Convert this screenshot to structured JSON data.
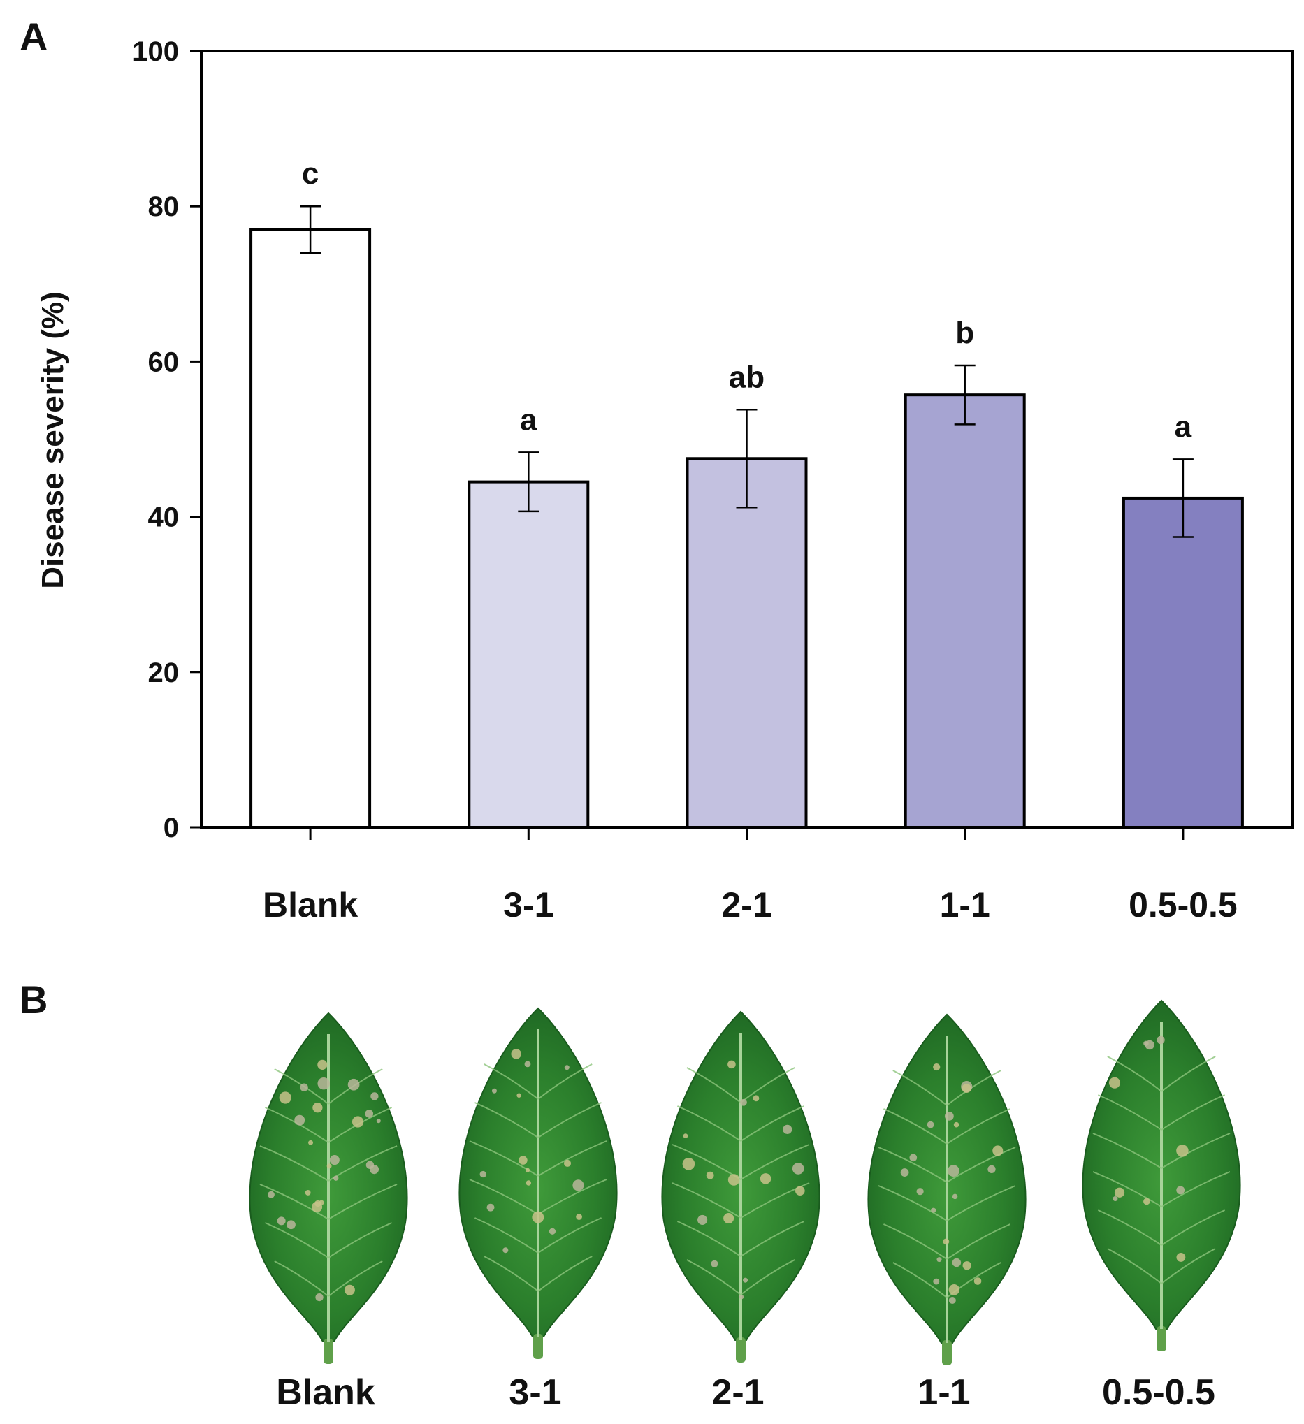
{
  "panels": {
    "a_label": "A",
    "b_label": "B"
  },
  "chart_data": {
    "type": "bar",
    "title": "",
    "xlabel": "",
    "ylabel": "Disease severity (%)",
    "ylim": [
      0,
      100
    ],
    "yticks": [
      0,
      20,
      40,
      60,
      80,
      100
    ],
    "categories": [
      "Blank",
      "3-1",
      "2-1",
      "1-1",
      "0.5-0.5"
    ],
    "values": [
      77,
      44.5,
      47.5,
      55.7,
      42.4
    ],
    "errors": [
      3.0,
      3.8,
      6.3,
      3.8,
      5.0
    ],
    "significance_letters": [
      "c",
      "a",
      "ab",
      "b",
      "a"
    ],
    "bar_colors": [
      "#ffffff",
      "#d9d9ec",
      "#c3c1e0",
      "#a6a4d2",
      "#8480c0"
    ],
    "grid": false,
    "legend": "none"
  },
  "photos": {
    "leaf_labels": [
      "Blank",
      "3-1",
      "2-1",
      "1-1",
      "0.5-0.5"
    ],
    "leaf_lesion_level": [
      "high",
      "moderate",
      "moderate",
      "moderate-high",
      "low"
    ]
  }
}
